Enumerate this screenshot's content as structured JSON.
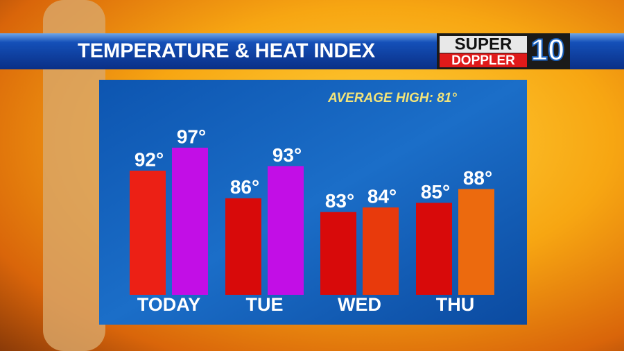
{
  "chart_data": {
    "type": "bar",
    "title": "TEMPERATURE & HEAT INDEX",
    "logo": {
      "top": "SUPER",
      "bottom": "DOPPLER",
      "number": "10"
    },
    "annotation": "AVERAGE HIGH: 81°",
    "categories": [
      "TODAY",
      "TUE",
      "WED",
      "THU"
    ],
    "series": [
      {
        "values": [
          92,
          86,
          83,
          85
        ],
        "value_labels": [
          "92°",
          "86°",
          "83°",
          "85°"
        ],
        "colors": [
          "#ec2015",
          "#d80a0a",
          "#d80a0a",
          "#d80a0a"
        ]
      },
      {
        "values": [
          97,
          93,
          84,
          88
        ],
        "value_labels": [
          "97°",
          "93°",
          "84°",
          "88°"
        ],
        "colors": [
          "#c20ee6",
          "#c20ee6",
          "#e83a0c",
          "#ec6a0e"
        ]
      }
    ],
    "ylim": [
      65,
      100
    ]
  }
}
